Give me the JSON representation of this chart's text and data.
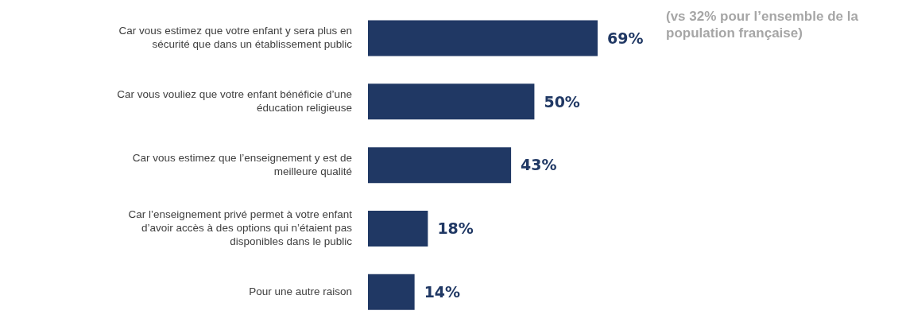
{
  "chart_data": {
    "type": "bar",
    "orientation": "horizontal",
    "categories": [
      "Car vous estimez que votre enfant y sera plus en sécurité que dans un établissement public",
      "Car vous vouliez que votre enfant bénéficie d’une éducation religieuse",
      "Car vous estimez que l’enseignement y est de meilleure qualité",
      "Car l’enseignement privé permet à votre enfant d’avoir accès à des options qui n’étaient pas disponibles dans le public",
      "Pour une autre raison"
    ],
    "values": [
      69,
      50,
      43,
      18,
      14
    ],
    "value_labels": [
      "69%",
      "50%",
      "43%",
      "18%",
      "14%"
    ],
    "color": "#203864",
    "annotations": [
      "(vs 32% pour l’ensemble de la population française)"
    ]
  }
}
